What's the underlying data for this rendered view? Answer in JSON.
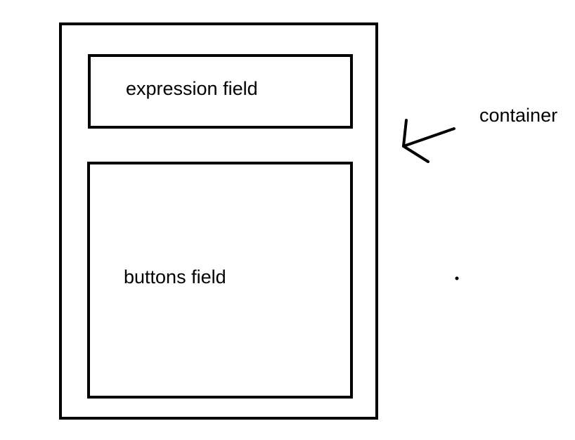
{
  "labels": {
    "container": "container",
    "expression_field": "expression field",
    "buttons_field": "buttons field"
  },
  "colors": {
    "stroke": "#000000",
    "background": "#ffffff"
  }
}
